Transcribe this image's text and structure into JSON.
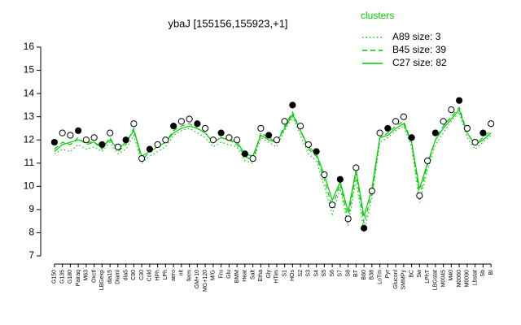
{
  "chart_data": {
    "type": "line",
    "title": "ybaJ [155156,155923,+1]",
    "categories": [
      "G150",
      "G135",
      "G180",
      "Pairaq",
      "M63",
      "Oxctl",
      "LBGexp",
      "dia15",
      "Diami",
      "dia5",
      "C90",
      "C30",
      "Cold",
      "HPh",
      "LPh",
      "aero",
      "nit",
      "ferm",
      "GM+10",
      "MG+120",
      "M/G",
      "Fru",
      "Glu",
      "BMM",
      "Heat",
      "Salt",
      "Etha",
      "Gly",
      "HTim",
      "S1",
      "HOs",
      "S2",
      "S3",
      "S4",
      "S5",
      "S6",
      "S7",
      "S8",
      "BT",
      "B60",
      "B38",
      "LoTm",
      "Pyr",
      "Gluconl",
      "SMMPy",
      "BC",
      "Sw",
      "LPhT",
      "LBGstat",
      "M0045",
      "M40",
      "M0060",
      "M0090",
      "Lbstat",
      "Sb",
      "BI"
    ],
    "values": [
      11.9,
      12.3,
      12.2,
      12.4,
      12.0,
      12.1,
      11.8,
      12.3,
      11.7,
      12.0,
      12.7,
      11.2,
      11.6,
      11.8,
      12.0,
      12.6,
      12.8,
      12.9,
      12.7,
      12.5,
      12.0,
      12.3,
      12.1,
      12.0,
      11.4,
      11.2,
      12.5,
      12.2,
      12.0,
      12.8,
      13.5,
      12.6,
      11.8,
      11.5,
      10.5,
      9.2,
      10.3,
      8.6,
      10.8,
      8.2,
      9.8,
      12.3,
      12.5,
      12.8,
      13.0,
      12.1,
      9.6,
      11.1,
      12.3,
      12.8,
      13.3,
      13.7,
      12.5,
      11.9,
      12.3,
      12.7
    ],
    "point_color": "#000000",
    "legend_title": "clusters",
    "series": [
      {
        "name": "A89 size: 3",
        "color": "#00cc00",
        "style": "dotted",
        "values": [
          11.4,
          11.6,
          11.5,
          11.8,
          11.6,
          11.7,
          11.5,
          11.9,
          11.4,
          11.6,
          12.2,
          11.0,
          11.3,
          11.5,
          11.7,
          12.2,
          12.4,
          12.5,
          12.3,
          12.1,
          11.7,
          11.9,
          11.8,
          11.7,
          11.1,
          11.0,
          12.1,
          11.9,
          11.7,
          12.4,
          13.0,
          12.2,
          11.4,
          11.1,
          10.0,
          8.8,
          9.9,
          8.3,
          10.3,
          8.0,
          9.5,
          11.9,
          12.1,
          12.4,
          12.6,
          11.7,
          9.3,
          10.7,
          11.8,
          12.3,
          12.8,
          13.2,
          12.1,
          11.6,
          11.9,
          12.2
        ]
      },
      {
        "name": "B45 size: 39",
        "color": "#00cc00",
        "style": "dashed",
        "values": [
          11.6,
          11.9,
          11.8,
          12.1,
          11.8,
          11.9,
          11.6,
          12.1,
          11.5,
          11.8,
          12.5,
          11.1,
          11.5,
          11.7,
          11.9,
          12.4,
          12.6,
          12.7,
          12.5,
          12.3,
          11.9,
          12.1,
          12.0,
          11.8,
          11.3,
          11.1,
          12.3,
          12.1,
          11.9,
          12.6,
          13.2,
          12.4,
          11.6,
          11.3,
          10.3,
          9.1,
          10.1,
          8.6,
          10.6,
          8.4,
          9.7,
          12.1,
          12.3,
          12.6,
          12.8,
          11.9,
          9.6,
          10.9,
          12.0,
          12.6,
          13.0,
          13.4,
          12.3,
          11.8,
          12.1,
          12.4
        ]
      },
      {
        "name": "C27 size: 82",
        "color": "#00cc00",
        "style": "solid",
        "values": [
          11.5,
          11.8,
          11.9,
          12.0,
          11.9,
          11.9,
          11.7,
          12.0,
          11.6,
          11.9,
          12.4,
          11.3,
          11.5,
          11.7,
          11.9,
          12.3,
          12.5,
          12.6,
          12.5,
          12.3,
          11.9,
          12.1,
          12.0,
          11.9,
          11.4,
          11.3,
          12.2,
          12.0,
          11.9,
          12.5,
          13.1,
          12.4,
          11.7,
          11.4,
          10.5,
          9.4,
          10.2,
          8.9,
          10.7,
          8.7,
          9.9,
          12.1,
          12.2,
          12.5,
          12.7,
          11.9,
          9.9,
          11.0,
          12.0,
          12.5,
          12.9,
          13.3,
          12.3,
          11.8,
          12.0,
          12.3
        ]
      }
    ],
    "ylim": [
      7,
      16
    ],
    "yticks": [
      7,
      8,
      9,
      10,
      11,
      12,
      13,
      14,
      15,
      16
    ]
  }
}
